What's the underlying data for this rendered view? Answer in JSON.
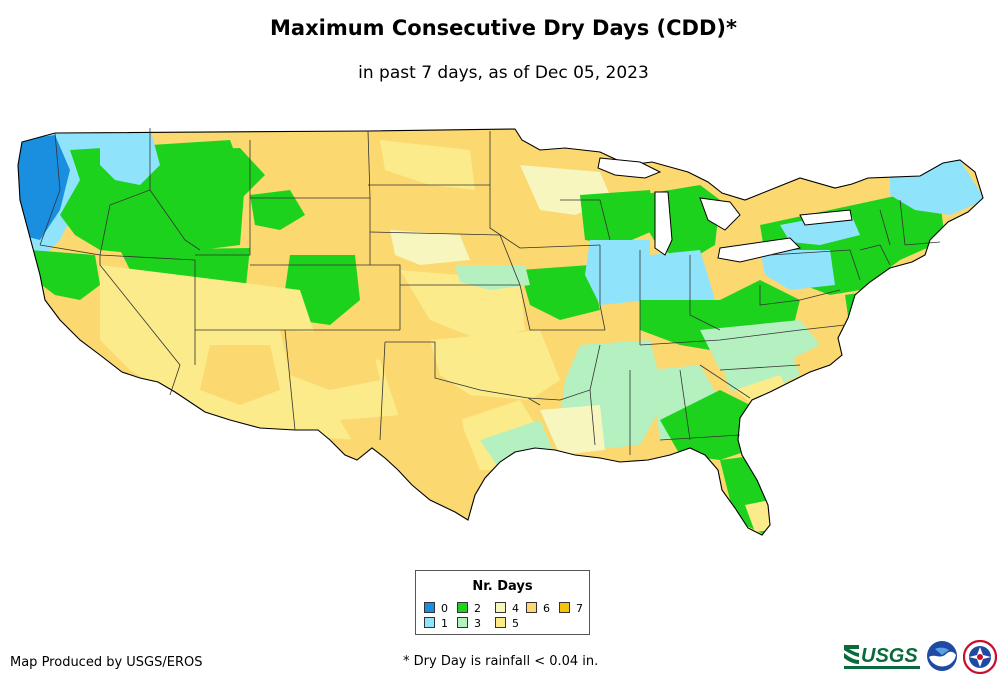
{
  "header": {
    "title": "Maximum Consecutive Dry Days (CDD)*",
    "subtitle": "in past 7 days, as of Dec 05, 2023"
  },
  "legend": {
    "title": "Nr. Days",
    "items": [
      {
        "label": "0",
        "color": "#1a8fe0"
      },
      {
        "label": "1",
        "color": "#8fe4fb"
      },
      {
        "label": "2",
        "color": "#1dd21d"
      },
      {
        "label": "3",
        "color": "#b4f0c0"
      },
      {
        "label": "4",
        "color": "#f7f6bf"
      },
      {
        "label": "5",
        "color": "#fbeb8a"
      },
      {
        "label": "6",
        "color": "#fbd870"
      },
      {
        "label": "7",
        "color": "#f8c20a"
      }
    ]
  },
  "footer": {
    "credit": "Map Produced by USGS/EROS",
    "footnote": "* Dry Day is rainfall < 0.04 in.",
    "logos": [
      "usgs-logo",
      "noaa-logo",
      "nws-logo"
    ]
  }
}
